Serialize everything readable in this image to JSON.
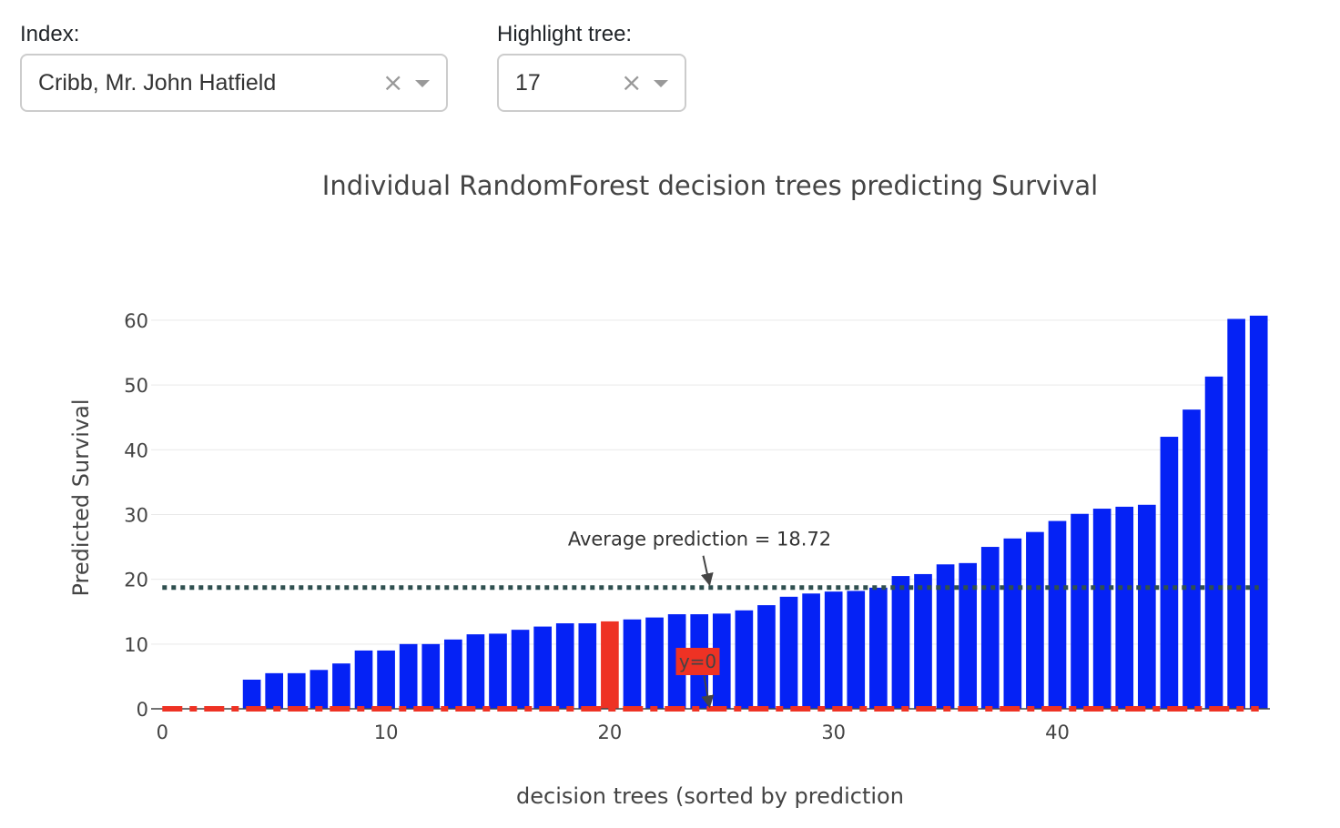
{
  "controls": {
    "index_label": "Index:",
    "index_value": "Cribb, Mr. John Hatfield",
    "highlight_label": "Highlight tree:",
    "highlight_value": "17",
    "clear_glyph": "×"
  },
  "chart_data": {
    "type": "bar",
    "title": "Individual RandomForest decision trees predicting Survival",
    "xlabel": "decision trees (sorted by prediction",
    "ylabel": "Predicted Survival",
    "x": [
      0,
      1,
      2,
      3,
      4,
      5,
      6,
      7,
      8,
      9,
      10,
      11,
      12,
      13,
      14,
      15,
      16,
      17,
      18,
      19,
      20,
      21,
      22,
      23,
      24,
      25,
      26,
      27,
      28,
      29,
      30,
      31,
      32,
      33,
      34,
      35,
      36,
      37,
      38,
      39,
      40,
      41,
      42,
      43,
      44,
      45,
      46,
      47,
      48,
      49
    ],
    "values": [
      0,
      0,
      0,
      0,
      4.5,
      5.5,
      5.5,
      6,
      7,
      9,
      9,
      10,
      10,
      10.7,
      11.5,
      11.6,
      12.2,
      12.7,
      13.2,
      13.2,
      13.5,
      13.8,
      14.1,
      14.6,
      14.6,
      14.7,
      15.2,
      16,
      17.3,
      17.8,
      18.1,
      18.2,
      18.7,
      20.5,
      20.8,
      22.3,
      22.5,
      25,
      26.3,
      27.3,
      29,
      30.1,
      30.9,
      31.2,
      31.5,
      42,
      46.2,
      51.3,
      60.2,
      60.7
    ],
    "highlight_index": 20,
    "colors": {
      "bar": "#0522f5",
      "highlight": "#ee3224",
      "average": "#2f4f4f",
      "target": "#ee3224",
      "grid": "#e9e9e9"
    },
    "xlim": [
      -0.5,
      49.5
    ],
    "ylim": [
      0,
      63.5
    ],
    "xticks": [
      0,
      10,
      20,
      30,
      40
    ],
    "yticks": [
      0,
      10,
      20,
      30,
      40,
      50,
      60
    ],
    "average": {
      "value": 18.72,
      "label": "Average prediction = 18.72",
      "arrow_x": 24.5
    },
    "target": {
      "value": 0,
      "label": "y=0",
      "arrow_x": 24.5
    },
    "grid": true,
    "legend": "none"
  }
}
